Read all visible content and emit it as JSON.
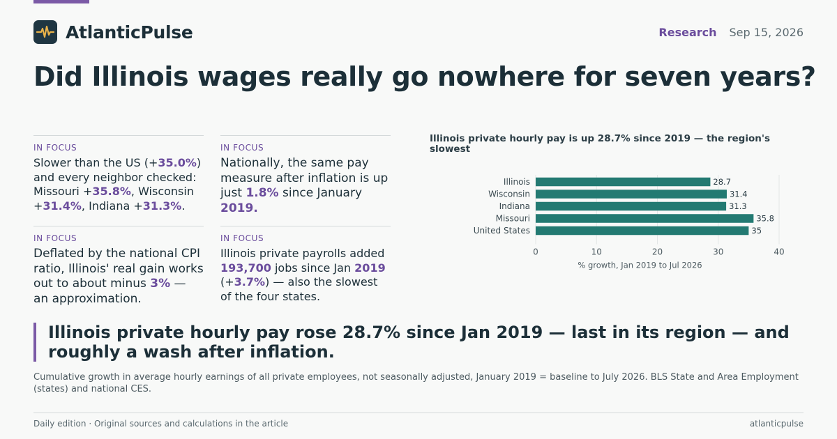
{
  "brand": {
    "name": "AtlanticPulse",
    "logo_icon": "pulse-icon",
    "accent": "#7b5aa6"
  },
  "header": {
    "section": "Research",
    "date": "Sep 15, 2026"
  },
  "headline": "Did Illinois wages really go nowhere for seven years?",
  "focus": [
    {
      "kicker": "IN FOCUS",
      "parts": [
        {
          "t": "Slower than the US (+"
        },
        {
          "t": "35.0%",
          "hl": true
        },
        {
          "t": ") and every neighbor checked: Missouri +"
        },
        {
          "t": "35.8%",
          "hl": true
        },
        {
          "t": ", Wisconsin +"
        },
        {
          "t": "31.4%",
          "hl": true
        },
        {
          "t": ", Indiana +"
        },
        {
          "t": "31.3%",
          "hl": true
        },
        {
          "t": "."
        }
      ]
    },
    {
      "kicker": "IN FOCUS",
      "parts": [
        {
          "t": "Nationally, the same pay measure after inflation is up just "
        },
        {
          "t": "1.8%",
          "hl": true
        },
        {
          "t": " since January "
        },
        {
          "t": "2019.",
          "hl": true
        }
      ]
    },
    {
      "kicker": "IN FOCUS",
      "parts": [
        {
          "t": "Deflated by the national CPI ratio, Illinois' real gain works out to about minus "
        },
        {
          "t": "3%",
          "hl": true
        },
        {
          "t": " — an approximation."
        }
      ]
    },
    {
      "kicker": "IN FOCUS",
      "parts": [
        {
          "t": "Illinois private payrolls added "
        },
        {
          "t": "193,700",
          "hl": true
        },
        {
          "t": " jobs since Jan "
        },
        {
          "t": "2019",
          "hl": true
        },
        {
          "t": " (+"
        },
        {
          "t": "3.7%",
          "hl": true
        },
        {
          "t": ") — also the slowest of the four states."
        }
      ]
    }
  ],
  "chart_data": {
    "type": "bar",
    "orientation": "horizontal",
    "title": "Illinois private hourly pay is up 28.7% since 2019 — the region's slowest",
    "categories": [
      "Illinois",
      "Wisconsin",
      "Indiana",
      "Missouri",
      "United States"
    ],
    "values": [
      28.7,
      31.4,
      31.3,
      35.8,
      35
    ],
    "value_labels": [
      "28.7",
      "31.4",
      "31.3",
      "35.8",
      "35"
    ],
    "xlabel": "% growth, Jan 2019 to Jul 2026",
    "ylabel": "",
    "xlim": [
      0,
      40
    ],
    "xticks": [
      0,
      10,
      20,
      30,
      40
    ],
    "bar_color": "#237a72",
    "grid": true
  },
  "pullquote": "Illinois private hourly pay rose 28.7% since Jan 2019 — last in its region — and roughly a wash after inflation.",
  "caption": "Cumulative growth in average hourly earnings of all private employees, not seasonally adjusted, January 2019 = baseline to July 2026. BLS State and Area Employment (states) and national CES.",
  "footer": {
    "left": "Daily edition · Original sources and calculations in the article",
    "right": "atlanticpulse"
  }
}
